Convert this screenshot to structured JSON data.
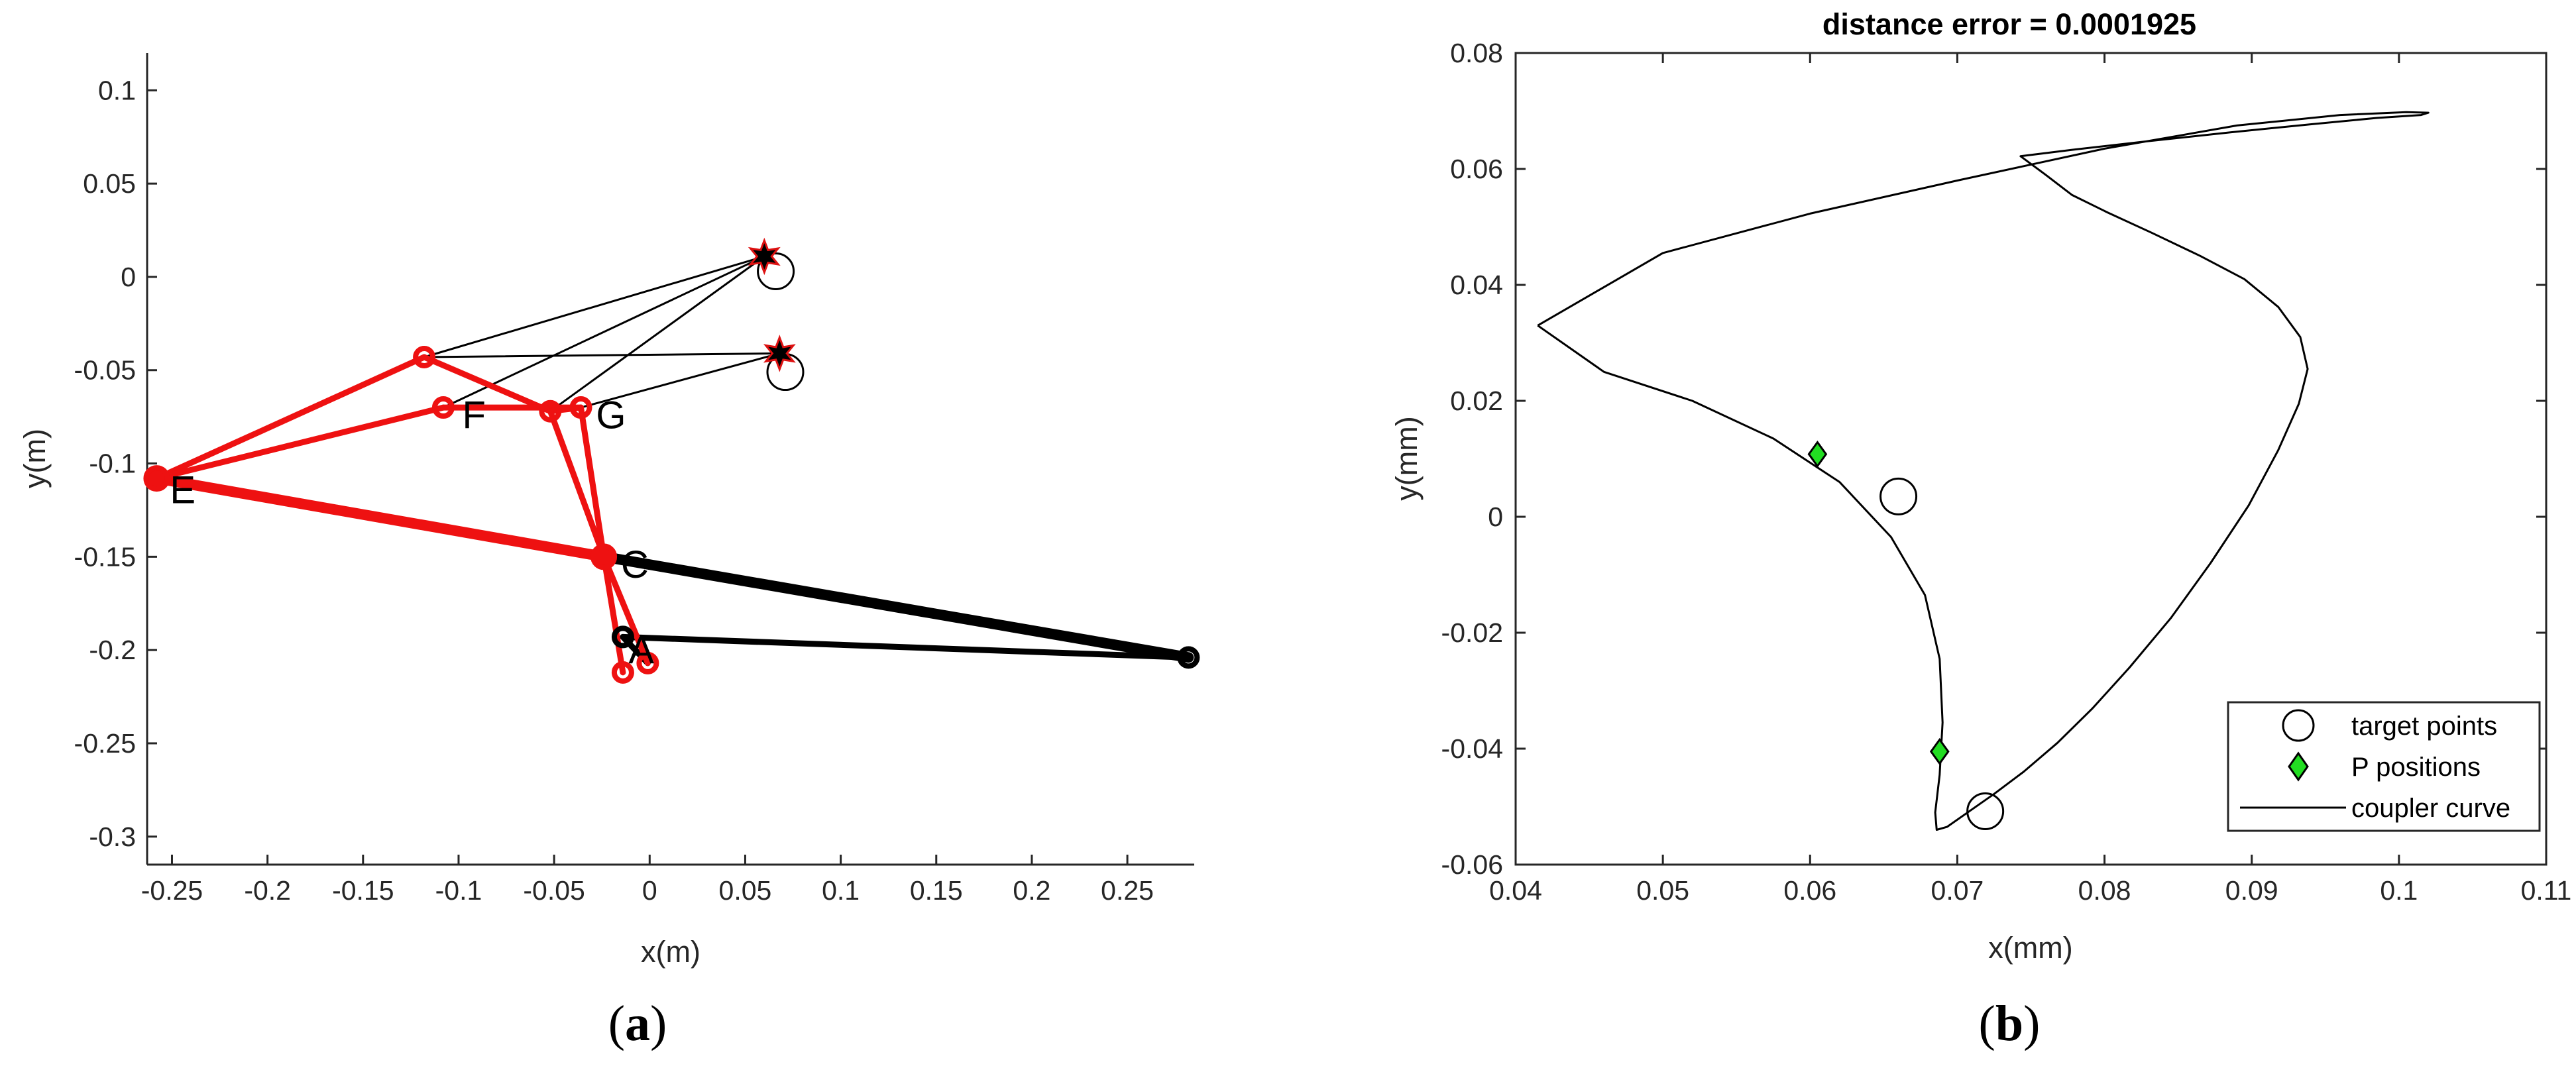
{
  "chart_data": [
    {
      "type": "line",
      "panel_label_parts": [
        "(",
        "a",
        ")"
      ],
      "xlabel": "x(m)",
      "ylabel": "y(m)",
      "xlim": [
        -0.263,
        0.285
      ],
      "ylim": [
        -0.315,
        0.12
      ],
      "x_ticks": [
        -0.25,
        -0.2,
        -0.15,
        -0.1,
        -0.05,
        0,
        0.05,
        0.1,
        0.15,
        0.2,
        0.25
      ],
      "x_tick_labels": [
        "-0.25",
        "-0.2",
        "-0.15",
        "-0.1",
        "-0.05",
        "0",
        "0.05",
        "0.1",
        "0.15",
        "0.2",
        "0.25"
      ],
      "y_ticks": [
        0.1,
        0.05,
        0,
        -0.05,
        -0.1,
        -0.15,
        -0.2,
        -0.25,
        -0.3
      ],
      "y_tick_labels": [
        "0.1",
        "0.05",
        "0",
        "-0.05",
        "-0.1",
        "-0.15",
        "-0.2",
        "-0.25",
        "-0.3"
      ],
      "grid": false,
      "point_labels": [
        {
          "text": "E",
          "x": -0.258,
          "y": -0.112
        },
        {
          "text": "F",
          "x": -0.105,
          "y": -0.072
        },
        {
          "text": "G",
          "x": -0.035,
          "y": -0.072
        },
        {
          "text": "C",
          "x": -0.022,
          "y": -0.152
        },
        {
          "text": "A",
          "x": -0.018,
          "y": -0.198
        }
      ],
      "series": [
        {
          "color": "#000000",
          "width": 3,
          "x": [
            -0.118,
            0.06
          ],
          "y": [
            -0.043,
            0.011
          ]
        },
        {
          "color": "#000000",
          "width": 3,
          "x": [
            -0.118,
            0.068
          ],
          "y": [
            -0.043,
            -0.041
          ]
        },
        {
          "color": "#000000",
          "width": 3,
          "x": [
            -0.108,
            0.06
          ],
          "y": [
            -0.07,
            0.011
          ]
        },
        {
          "color": "#000000",
          "width": 3,
          "x": [
            -0.052,
            0.06
          ],
          "y": [
            -0.072,
            0.011
          ]
        },
        {
          "color": "#000000",
          "width": 3,
          "x": [
            -0.036,
            0.068
          ],
          "y": [
            -0.07,
            -0.041
          ]
        },
        {
          "color": "#000000",
          "width": 16,
          "x": [
            -0.024,
            0.282
          ],
          "y": [
            -0.15,
            -0.204
          ]
        },
        {
          "color": "#000000",
          "width": 9,
          "x": [
            -0.014,
            0.282
          ],
          "y": [
            -0.193,
            -0.204
          ]
        },
        {
          "color": "#000000",
          "width": 9,
          "x": [
            -0.014,
            -0.001
          ],
          "y": [
            -0.193,
            -0.207
          ]
        },
        {
          "color": "#ee1111",
          "width": 16,
          "x": [
            -0.258,
            -0.024
          ],
          "y": [
            -0.108,
            -0.15
          ]
        },
        {
          "color": "#ee1111",
          "width": 9,
          "x": [
            -0.258,
            -0.118
          ],
          "y": [
            -0.108,
            -0.043
          ]
        },
        {
          "color": "#ee1111",
          "width": 9,
          "x": [
            -0.258,
            -0.108
          ],
          "y": [
            -0.108,
            -0.07
          ]
        },
        {
          "color": "#ee1111",
          "width": 9,
          "x": [
            -0.118,
            -0.052
          ],
          "y": [
            -0.043,
            -0.072
          ]
        },
        {
          "color": "#ee1111",
          "width": 9,
          "x": [
            -0.108,
            -0.036
          ],
          "y": [
            -0.07,
            -0.07
          ]
        },
        {
          "color": "#ee1111",
          "width": 9,
          "x": [
            -0.052,
            -0.036
          ],
          "y": [
            -0.072,
            -0.07
          ]
        },
        {
          "color": "#ee1111",
          "width": 9,
          "x": [
            -0.052,
            -0.024
          ],
          "y": [
            -0.072,
            -0.15
          ]
        },
        {
          "color": "#ee1111",
          "width": 9,
          "x": [
            -0.036,
            -0.024
          ],
          "y": [
            -0.07,
            -0.15
          ]
        },
        {
          "color": "#ee1111",
          "width": 9,
          "x": [
            -0.024,
            -0.014
          ],
          "y": [
            -0.15,
            -0.212
          ]
        },
        {
          "color": "#ee1111",
          "width": 9,
          "x": [
            -0.024,
            -0.001
          ],
          "y": [
            -0.15,
            -0.207
          ]
        }
      ],
      "joints": [
        {
          "x": -0.258,
          "y": -0.108,
          "color": "#ee1111",
          "size": "large"
        },
        {
          "x": -0.118,
          "y": -0.043,
          "color": "#ee1111",
          "size": "small"
        },
        {
          "x": -0.108,
          "y": -0.07,
          "color": "#ee1111",
          "size": "small"
        },
        {
          "x": -0.052,
          "y": -0.072,
          "color": "#ee1111",
          "size": "small"
        },
        {
          "x": -0.036,
          "y": -0.07,
          "color": "#ee1111",
          "size": "small"
        },
        {
          "x": -0.024,
          "y": -0.15,
          "color": "#ee1111",
          "size": "large"
        },
        {
          "x": -0.014,
          "y": -0.212,
          "color": "#ee1111",
          "size": "small"
        },
        {
          "x": -0.001,
          "y": -0.207,
          "color": "#ee1111",
          "size": "small"
        },
        {
          "x": -0.014,
          "y": -0.193,
          "color": "#000000",
          "size": "small"
        },
        {
          "x": 0.282,
          "y": -0.204,
          "color": "#000000",
          "size": "small"
        }
      ],
      "target_circles": [
        {
          "x": 0.066,
          "y": 0.003
        },
        {
          "x": 0.071,
          "y": -0.051
        }
      ],
      "stars": [
        {
          "x": 0.06,
          "y": 0.011
        },
        {
          "x": 0.068,
          "y": -0.041
        }
      ]
    },
    {
      "type": "line",
      "panel_label_parts": [
        "(",
        "b",
        ")"
      ],
      "title": "distance error = 0.0001925",
      "xlabel": "x(mm)",
      "ylabel": "y(mm)",
      "xlim": [
        0.04,
        0.11
      ],
      "ylim": [
        -0.06,
        0.08
      ],
      "x_ticks": [
        0.04,
        0.05,
        0.06,
        0.07,
        0.08,
        0.09,
        0.1,
        0.11
      ],
      "x_tick_labels": [
        "0.04",
        "0.05",
        "0.06",
        "0.07",
        "0.08",
        "0.09",
        "0.1",
        "0.11"
      ],
      "y_ticks": [
        0.08,
        0.06,
        0.04,
        0.02,
        0,
        -0.02,
        -0.04,
        -0.06
      ],
      "y_tick_labels": [
        "0.08",
        "0.06",
        "0.04",
        "0.02",
        "0",
        "-0.02",
        "-0.04",
        "-0.06"
      ],
      "grid": false,
      "legend_position": "bottom-right",
      "legend": [
        "target points",
        "P positions",
        "coupler curve"
      ],
      "target_points": [
        {
          "x": 0.066,
          "y": 0.0035
        },
        {
          "x": 0.0719,
          "y": -0.0508
        }
      ],
      "p_positions": [
        {
          "x": 0.0605,
          "y": 0.0108
        },
        {
          "x": 0.0688,
          "y": -0.0405
        }
      ],
      "coupler_curve": {
        "x": [
          0.0415,
          0.046,
          0.052,
          0.0575,
          0.062,
          0.0655,
          0.0678,
          0.0688,
          0.069,
          0.0688,
          0.0685,
          0.0686,
          0.0693,
          0.0707,
          0.0725,
          0.0745,
          0.0768,
          0.0792,
          0.0817,
          0.0845,
          0.0872,
          0.0898,
          0.0918,
          0.0932,
          0.0938,
          0.0933,
          0.0918,
          0.0895,
          0.0865,
          0.0832,
          0.0802,
          0.0778,
          0.076,
          0.0743,
          0.0778,
          0.083,
          0.0885,
          0.094,
          0.0985,
          0.1015,
          0.102,
          0.1005,
          0.096,
          0.089,
          0.08,
          0.07,
          0.06,
          0.05,
          0.0415
        ],
        "y": [
          0.033,
          0.025,
          0.02,
          0.0135,
          0.006,
          -0.0035,
          -0.0135,
          -0.0245,
          -0.0355,
          -0.0445,
          -0.051,
          -0.054,
          -0.0535,
          -0.051,
          -0.0478,
          -0.044,
          -0.039,
          -0.033,
          -0.026,
          -0.0175,
          -0.008,
          0.002,
          0.0115,
          0.0195,
          0.0255,
          0.031,
          0.0362,
          0.041,
          0.045,
          0.049,
          0.0525,
          0.0555,
          0.059,
          0.0622,
          0.0633,
          0.0648,
          0.0663,
          0.0677,
          0.0688,
          0.0693,
          0.0697,
          0.0698,
          0.0693,
          0.0675,
          0.0635,
          0.058,
          0.0523,
          0.0455,
          0.033
        ]
      }
    }
  ]
}
